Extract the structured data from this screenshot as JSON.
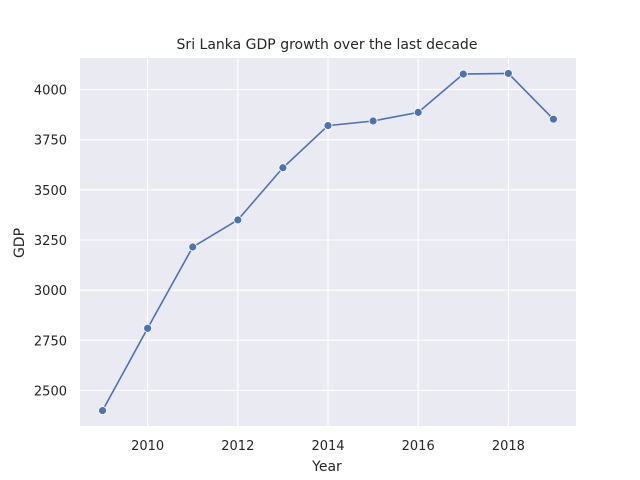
{
  "chart_data": {
    "type": "line",
    "title": "Sri Lanka GDP growth over the last decade",
    "xlabel": "Year",
    "ylabel": "GDP",
    "x": [
      2009,
      2010,
      2011,
      2012,
      2013,
      2014,
      2015,
      2016,
      2017,
      2018,
      2019
    ],
    "series": [
      {
        "values": [
          2400,
          2810,
          3215,
          3350,
          3610,
          3820,
          3843,
          3886,
          4077,
          4080,
          3852
        ],
        "color": "#4c72b0"
      }
    ],
    "xlim": [
      2008.5,
      2019.5
    ],
    "ylim": [
      2323,
      4157
    ],
    "xticks": [
      2010,
      2012,
      2014,
      2016,
      2018
    ],
    "yticks": [
      2500,
      2750,
      3000,
      3250,
      3500,
      3750,
      4000
    ],
    "grid": true,
    "background": "#eaeaf2"
  }
}
